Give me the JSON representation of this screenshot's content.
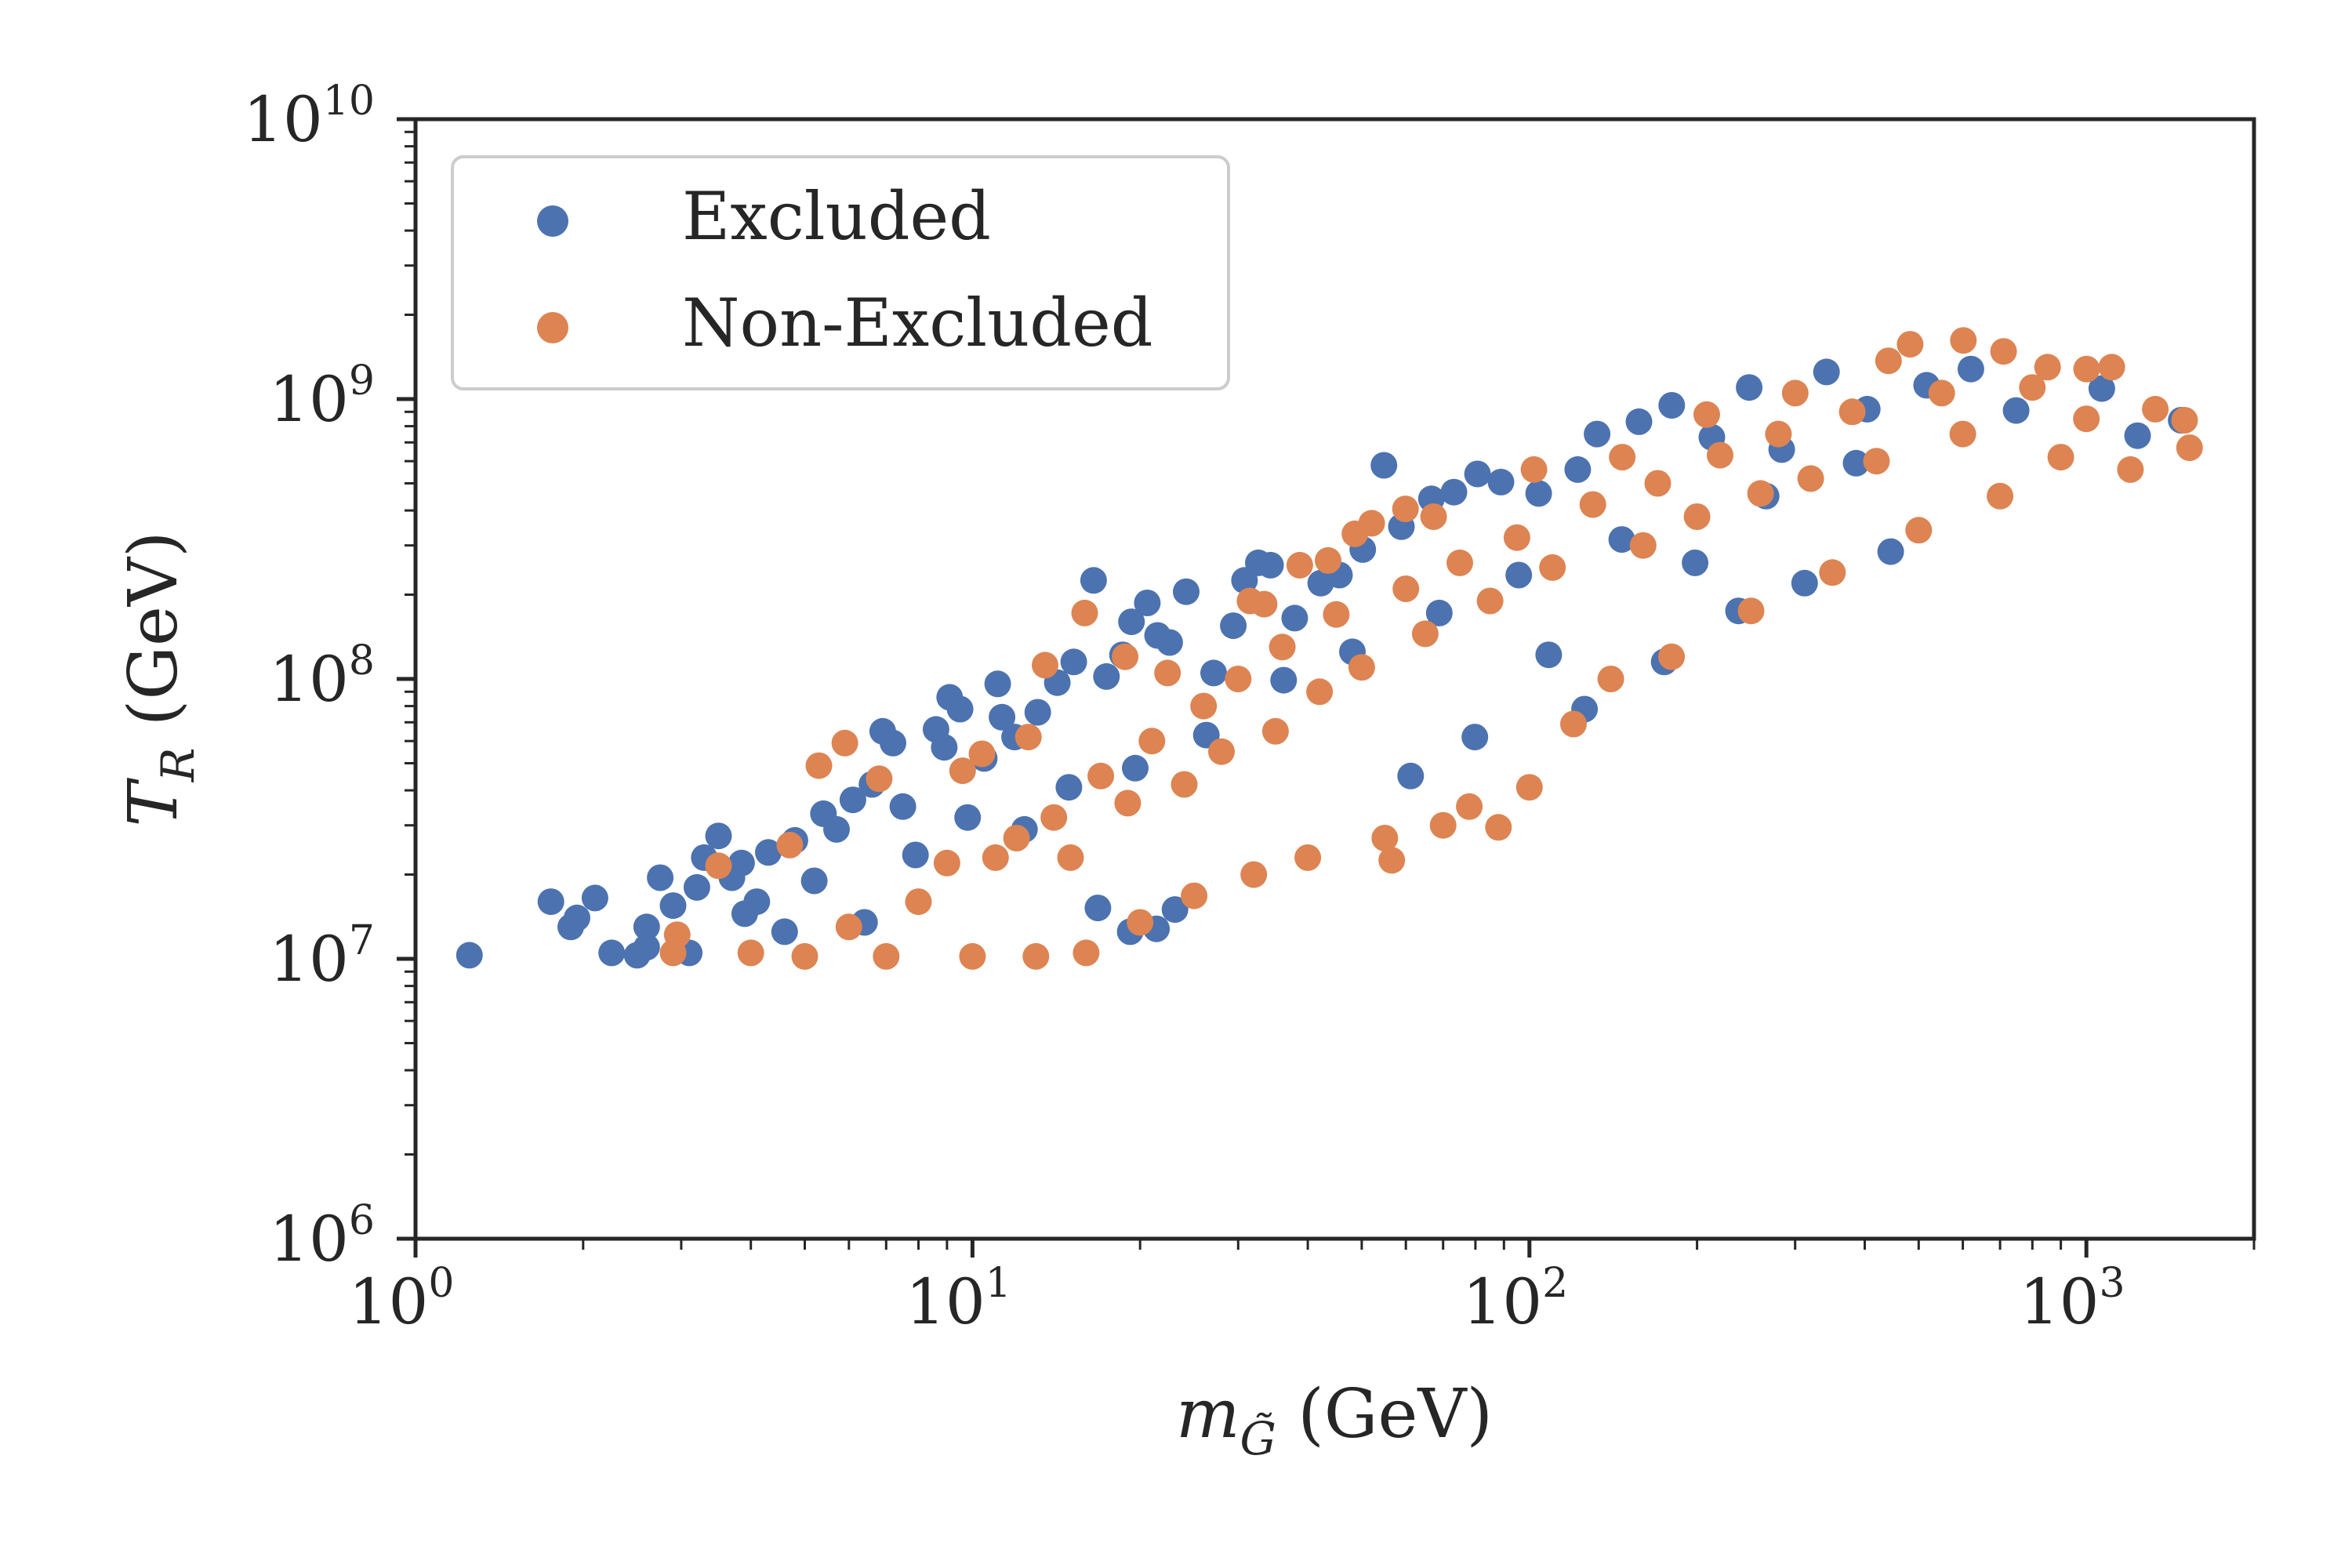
{
  "chart_data": {
    "type": "scatter",
    "x_scale": "log",
    "y_scale": "log",
    "xlim": [
      1,
      2000
    ],
    "ylim": [
      1000000,
      10000000000
    ],
    "x_ticks": [
      {
        "value": 1,
        "base": "10",
        "exp": "0"
      },
      {
        "value": 10,
        "base": "10",
        "exp": "1"
      },
      {
        "value": 100,
        "base": "10",
        "exp": "2"
      },
      {
        "value": 1000,
        "base": "10",
        "exp": "3"
      }
    ],
    "y_ticks": [
      {
        "value": 1000000,
        "base": "10",
        "exp": "6"
      },
      {
        "value": 10000000,
        "base": "10",
        "exp": "7"
      },
      {
        "value": 100000000,
        "base": "10",
        "exp": "8"
      },
      {
        "value": 1000000000,
        "base": "10",
        "exp": "9"
      },
      {
        "value": 10000000000,
        "base": "10",
        "exp": "10"
      }
    ],
    "xlabel": {
      "symbol": "m",
      "subscript": "G̃",
      "unit": " (GeV)"
    },
    "ylabel": {
      "symbol": "T",
      "subscript": "R",
      "unit": " (GeV)"
    },
    "grid": false,
    "legend_position": "upper-left",
    "series": [
      {
        "name": "Excluded",
        "color": "#4c72b0",
        "points": [
          [
            1.25,
            10300000.0
          ],
          [
            1.75,
            16000000.0
          ],
          [
            1.9,
            13000000.0
          ],
          [
            1.95,
            14000000.0
          ],
          [
            2.1,
            16500000.0
          ],
          [
            2.25,
            10500000.0
          ],
          [
            2.5,
            10300000.0
          ],
          [
            2.6,
            13000000.0
          ],
          [
            2.75,
            19500000.0
          ],
          [
            3.1,
            10500000.0
          ],
          [
            3.2,
            18000000.0
          ],
          [
            3.3,
            23000000.0
          ],
          [
            3.5,
            27500000.0
          ],
          [
            3.7,
            19500000.0
          ],
          [
            3.85,
            22000000.0
          ],
          [
            4.1,
            16000000.0
          ],
          [
            4.3,
            24000000.0
          ],
          [
            4.8,
            26500000.0
          ],
          [
            5.4,
            33000000.0
          ],
          [
            5.7,
            29000000.0
          ],
          [
            6.1,
            37000000.0
          ],
          [
            6.6,
            42000000.0
          ],
          [
            6.9,
            65000000.0
          ],
          [
            7.2,
            59000000.0
          ],
          [
            7.5,
            35000000.0
          ],
          [
            8.6,
            66000000.0
          ],
          [
            8.9,
            57000000.0
          ],
          [
            9.1,
            86000000.0
          ],
          [
            9.5,
            78000000.0
          ],
          [
            10.5,
            52000000.0
          ],
          [
            11.1,
            96000000.0
          ],
          [
            11.3,
            73000000.0
          ],
          [
            11.9,
            62000000.0
          ],
          [
            13.1,
            76000000.0
          ],
          [
            14.2,
            97000000.0
          ],
          [
            15.2,
            115000000.0
          ],
          [
            16.5,
            225000000.0
          ],
          [
            17.4,
            102000000.0
          ],
          [
            18.6,
            122000000.0
          ],
          [
            19.3,
            160000000.0
          ],
          [
            20.6,
            187000000.0
          ],
          [
            21.5,
            143000000.0
          ],
          [
            22.6,
            135000000.0
          ],
          [
            24.2,
            205000000.0
          ],
          [
            27.1,
            105000000.0
          ],
          [
            29.4,
            155000000.0
          ],
          [
            30.8,
            225000000.0
          ],
          [
            32.6,
            260000000.0
          ],
          [
            34.3,
            255000000.0
          ],
          [
            37.9,
            165000000.0
          ],
          [
            42.2,
            220000000.0
          ],
          [
            45.6,
            235000000.0
          ],
          [
            50.2,
            290000000.0
          ],
          [
            54.8,
            580000000.0
          ],
          [
            58.9,
            350000000.0
          ],
          [
            66.7,
            440000000.0
          ],
          [
            73.2,
            465000000.0
          ],
          [
            80.7,
            540000000.0
          ],
          [
            88.9,
            505000000.0
          ],
          [
            103.9,
            460000000.0
          ],
          [
            122.1,
            560000000.0
          ],
          [
            132.3,
            750000000.0
          ],
          [
            157.3,
            830000000.0
          ],
          [
            180.1,
            950000000.0
          ],
          [
            212.6,
            730000000.0
          ],
          [
            248.1,
            1100000000.0
          ],
          [
            283.8,
            660000000.0
          ],
          [
            341.5,
            1250000000.0
          ],
          [
            404.2,
            920000000.0
          ],
          [
            516.7,
            1120000000.0
          ],
          [
            620.4,
            1280000000.0
          ],
          [
            748.1,
            910000000.0
          ],
          [
            1066.0,
            1090000000.0
          ],
          [
            1236.0,
            740000000.0
          ],
          [
            1480.0,
            840000000.0
          ],
          [
            6.4,
            13500000.0
          ],
          [
            7.9,
            23500000.0
          ],
          [
            9.8,
            32000000.0
          ],
          [
            12.4,
            29000000.0
          ],
          [
            14.9,
            41000000.0
          ],
          [
            19.6,
            48000000.0
          ],
          [
            26.3,
            63000000.0
          ],
          [
            36.2,
            99000000.0
          ],
          [
            48.1,
            125000000.0
          ],
          [
            68.9,
            172000000.0
          ],
          [
            95.7,
            235000000.0
          ],
          [
            146.5,
            315000000.0
          ],
          [
            198.4,
            260000000.0
          ],
          [
            266.1,
            450000000.0
          ],
          [
            386.0,
            590000000.0
          ],
          [
            4.6,
            12500000.0
          ],
          [
            5.2,
            19000000.0
          ],
          [
            3.9,
            14500000.0
          ],
          [
            2.9,
            15500000.0
          ],
          [
            2.6,
            11000000.0
          ],
          [
            21.4,
            12800000.0
          ],
          [
            19.2,
            12500000.0
          ],
          [
            23.1,
            15000000.0
          ],
          [
            16.8,
            15200000.0
          ],
          [
            108.3,
            122000000.0
          ],
          [
            174.6,
            115000000.0
          ],
          [
            237.4,
            175000000.0
          ],
          [
            312.0,
            220000000.0
          ],
          [
            445.3,
            285000000.0
          ],
          [
            61.2,
            45000000.0
          ],
          [
            79.8,
            62000000.0
          ],
          [
            125.6,
            78000000.0
          ]
        ]
      },
      {
        "name": "Non-Excluded",
        "color": "#dd8452",
        "points": [
          [
            2.9,
            10500000.0
          ],
          [
            2.95,
            12200000.0
          ],
          [
            3.5,
            21500000.0
          ],
          [
            4.7,
            25500000.0
          ],
          [
            5.3,
            49000000.0
          ],
          [
            5.9,
            59000000.0
          ],
          [
            6.8,
            44000000.0
          ],
          [
            9.6,
            47000000.0
          ],
          [
            10.4,
            54000000.0
          ],
          [
            12.6,
            62000000.0
          ],
          [
            15.9,
            172000000.0
          ],
          [
            13.5,
            112000000.0
          ],
          [
            18.8,
            120000000.0
          ],
          [
            22.4,
            105000000.0
          ],
          [
            31.5,
            190000000.0
          ],
          [
            33.4,
            185000000.0
          ],
          [
            38.7,
            255000000.0
          ],
          [
            43.5,
            265000000.0
          ],
          [
            48.6,
            330000000.0
          ],
          [
            52.1,
            360000000.0
          ],
          [
            56.6,
            22500000.0
          ],
          [
            59.9,
            405000000.0
          ],
          [
            67.3,
            380000000.0
          ],
          [
            101.9,
            560000000.0
          ],
          [
            146.8,
            620000000.0
          ],
          [
            208.2,
            880000000.0
          ],
          [
            300.1,
            1050000000.0
          ],
          [
            441.3,
            1370000000.0
          ],
          [
            482.6,
            1570000000.0
          ],
          [
            601.5,
            1620000000.0
          ],
          [
            710.2,
            1480000000.0
          ],
          [
            852.0,
            1300000000.0
          ],
          [
            1001.0,
            1280000000.0
          ],
          [
            1111.0,
            1300000000.0
          ],
          [
            1330.0,
            920000000.0
          ],
          [
            1501.0,
            840000000.0
          ],
          [
            1532.0,
            670000000.0
          ],
          [
            1200.0,
            560000000.0
          ],
          [
            900.0,
            620000000.0
          ],
          [
            700.0,
            450000000.0
          ],
          [
            500.0,
            340000000.0
          ],
          [
            350.0,
            240000000.0
          ],
          [
            250.0,
            175000000.0
          ],
          [
            180.0,
            120000000.0
          ],
          [
            140.0,
            100000000.0
          ],
          [
            120.0,
            69000000.0
          ],
          [
            100.0,
            41000000.0
          ],
          [
            88.0,
            29500000.0
          ],
          [
            78.0,
            35000000.0
          ],
          [
            70.0,
            30000000.0
          ],
          [
            55.0,
            27000000.0
          ],
          [
            40.0,
            23000000.0
          ],
          [
            32.0,
            20000000.0
          ],
          [
            25.0,
            16800000.0
          ],
          [
            20.0,
            13500000.0
          ],
          [
            16.0,
            10500000.0
          ],
          [
            13.0,
            10200000.0
          ],
          [
            10.0,
            10200000.0
          ],
          [
            7.0,
            10200000.0
          ],
          [
            5.0,
            10200000.0
          ],
          [
            4.0,
            10500000.0
          ],
          [
            8.0,
            16000000.0
          ],
          [
            11.0,
            23000000.0
          ],
          [
            14.0,
            32000000.0
          ],
          [
            17.0,
            45000000.0
          ],
          [
            21.0,
            60000000.0
          ],
          [
            26.0,
            80000000.0
          ],
          [
            30.0,
            100000000.0
          ],
          [
            36.0,
            130000000.0
          ],
          [
            45.0,
            170000000.0
          ],
          [
            60.0,
            210000000.0
          ],
          [
            75.0,
            260000000.0
          ],
          [
            95.0,
            320000000.0
          ],
          [
            130.0,
            420000000.0
          ],
          [
            170.0,
            500000000.0
          ],
          [
            220.0,
            630000000.0
          ],
          [
            280.0,
            750000000.0
          ],
          [
            380.0,
            900000000.0
          ],
          [
            550.0,
            1050000000.0
          ],
          [
            800.0,
            1100000000.0
          ],
          [
            6.0,
            13000000.0
          ],
          [
            9.0,
            22000000.0
          ],
          [
            12.0,
            27000000.0
          ],
          [
            15.0,
            23000000.0
          ],
          [
            19.0,
            36000000.0
          ],
          [
            24.0,
            42000000.0
          ],
          [
            28.0,
            55000000.0
          ],
          [
            35.0,
            65000000.0
          ],
          [
            42.0,
            90000000.0
          ],
          [
            50.0,
            110000000.0
          ],
          [
            65.0,
            145000000.0
          ],
          [
            85.0,
            190000000.0
          ],
          [
            110.0,
            250000000.0
          ],
          [
            160.0,
            300000000.0
          ],
          [
            200.0,
            380000000.0
          ],
          [
            260.0,
            460000000.0
          ],
          [
            320.0,
            520000000.0
          ],
          [
            420.0,
            600000000.0
          ],
          [
            600.0,
            750000000.0
          ],
          [
            1000.0,
            850000000.0
          ]
        ]
      }
    ]
  }
}
